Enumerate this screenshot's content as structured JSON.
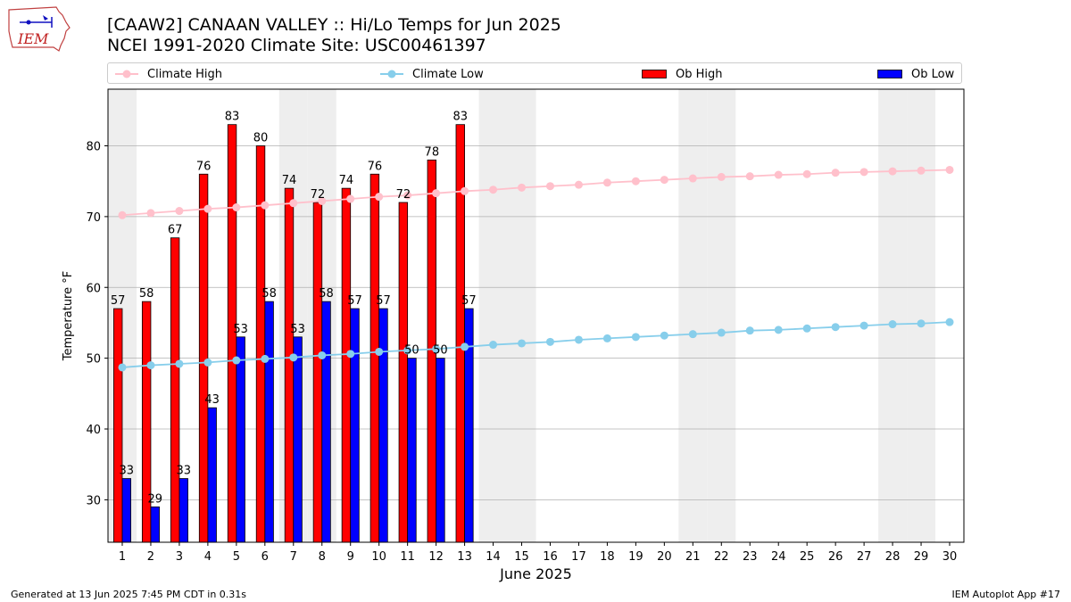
{
  "header": {
    "logo_text": "IEM",
    "title_line1": "[CAAW2] CANAAN VALLEY :: Hi/Lo Temps for Jun 2025",
    "title_line2": "NCEI 1991-2020 Climate Site: USC00461397"
  },
  "legend": {
    "climate_high": "Climate High",
    "climate_low": "Climate Low",
    "ob_high": "Ob High",
    "ob_low": "Ob Low"
  },
  "colors": {
    "climate_high": "#ffc0cb",
    "climate_low": "#87ceeb",
    "ob_high": "#ff0000",
    "ob_low": "#0000ff",
    "weekend_shade": "#eeeeee",
    "grid": "#b0b0b0"
  },
  "footer": {
    "left": "Generated at 13 Jun 2025 7:45 PM CDT in 0.31s",
    "right": "IEM Autoplot App #17"
  },
  "chart_data": {
    "type": "bar",
    "xlabel": "June 2025",
    "ylabel": "Temperature °F",
    "xlim": [
      0.5,
      30.5
    ],
    "ylim": [
      24,
      88
    ],
    "yticks": [
      30,
      40,
      50,
      60,
      70,
      80
    ],
    "grid": "horizontal",
    "legend_position": "top",
    "x": [
      1,
      2,
      3,
      4,
      5,
      6,
      7,
      8,
      9,
      10,
      11,
      12,
      13,
      14,
      15,
      16,
      17,
      18,
      19,
      20,
      21,
      22,
      23,
      24,
      25,
      26,
      27,
      28,
      29,
      30
    ],
    "shaded_days": [
      1,
      7,
      8,
      14,
      15,
      21,
      22,
      28,
      29
    ],
    "series": [
      {
        "name": "Ob High",
        "kind": "bar",
        "x": [
          1,
          2,
          3,
          4,
          5,
          6,
          7,
          8,
          9,
          10,
          11,
          12,
          13
        ],
        "values": [
          57,
          58,
          67,
          76,
          83,
          80,
          74,
          72,
          74,
          76,
          72,
          78,
          83
        ]
      },
      {
        "name": "Ob Low",
        "kind": "bar",
        "x": [
          1,
          2,
          3,
          4,
          5,
          6,
          7,
          8,
          9,
          10,
          11,
          12,
          13
        ],
        "values": [
          33,
          29,
          33,
          43,
          53,
          58,
          53,
          58,
          57,
          57,
          50,
          50,
          57
        ]
      },
      {
        "name": "Climate High",
        "kind": "line",
        "values": [
          70.2,
          70.5,
          70.8,
          71.1,
          71.3,
          71.6,
          71.9,
          72.2,
          72.5,
          72.8,
          73.0,
          73.3,
          73.6,
          73.8,
          74.1,
          74.3,
          74.5,
          74.8,
          75.0,
          75.2,
          75.4,
          75.6,
          75.7,
          75.9,
          76.0,
          76.2,
          76.3,
          76.4,
          76.5,
          76.6
        ]
      },
      {
        "name": "Climate Low",
        "kind": "line",
        "values": [
          48.7,
          49.0,
          49.2,
          49.4,
          49.7,
          49.9,
          50.1,
          50.4,
          50.6,
          50.9,
          51.1,
          51.3,
          51.6,
          51.9,
          52.1,
          52.3,
          52.6,
          52.8,
          53.0,
          53.2,
          53.4,
          53.6,
          53.9,
          54.0,
          54.2,
          54.4,
          54.6,
          54.8,
          54.9,
          55.1
        ]
      }
    ]
  }
}
